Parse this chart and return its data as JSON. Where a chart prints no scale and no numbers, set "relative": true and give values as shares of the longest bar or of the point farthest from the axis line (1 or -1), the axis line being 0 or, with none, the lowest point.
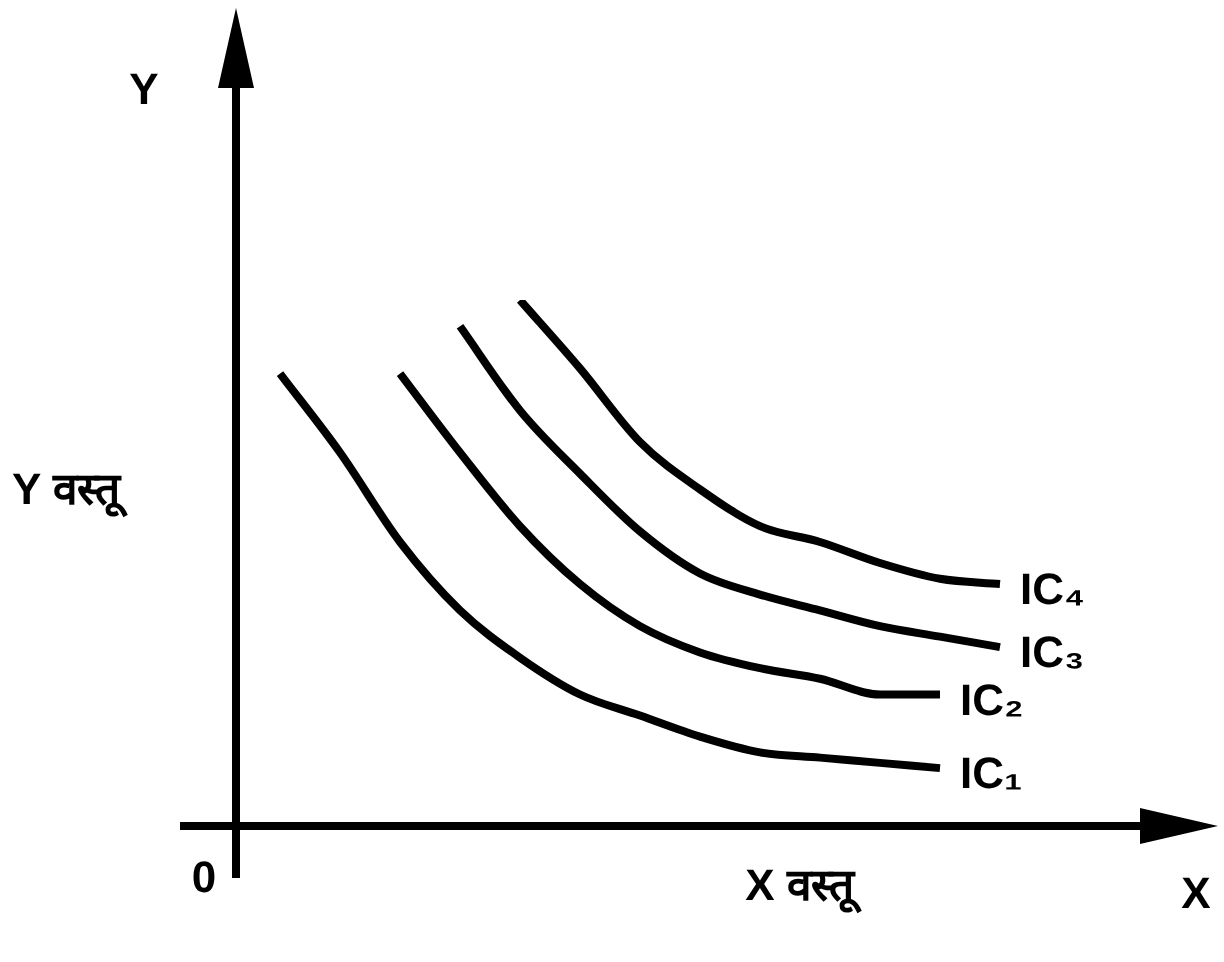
{
  "chart_data": {
    "type": "line",
    "relative": true,
    "xlabel": "X वस्तू",
    "ylabel": "Y वस्तू",
    "annotations": [
      "Y",
      "X",
      "0"
    ],
    "legend": false,
    "categories": [
      null,
      null,
      null,
      null,
      null,
      null,
      null,
      null,
      null,
      null,
      null,
      null,
      null
    ],
    "series": [
      {
        "name": "IC₁",
        "color": "#000000",
        "values": [
          0.86,
          0.71,
          0.54,
          0.41,
          0.32,
          0.25,
          0.21,
          0.17,
          0.14,
          0.13,
          0.12,
          0.11,
          null
        ]
      },
      {
        "name": "IC₂",
        "color": "#000000",
        "values": [
          null,
          null,
          0.86,
          0.71,
          0.57,
          0.46,
          0.38,
          0.33,
          0.3,
          0.28,
          0.25,
          0.25,
          null
        ]
      },
      {
        "name": "IC₃",
        "color": "#000000",
        "values": [
          null,
          null,
          null,
          0.95,
          0.79,
          0.67,
          0.56,
          0.48,
          0.44,
          0.41,
          0.38,
          0.36,
          0.34
        ]
      },
      {
        "name": "IC₄",
        "color": "#000000",
        "values": [
          null,
          null,
          null,
          null,
          1,
          0.87,
          0.73,
          0.64,
          0.57,
          0.54,
          0.5,
          0.47,
          0.46
        ]
      }
    ]
  }
}
